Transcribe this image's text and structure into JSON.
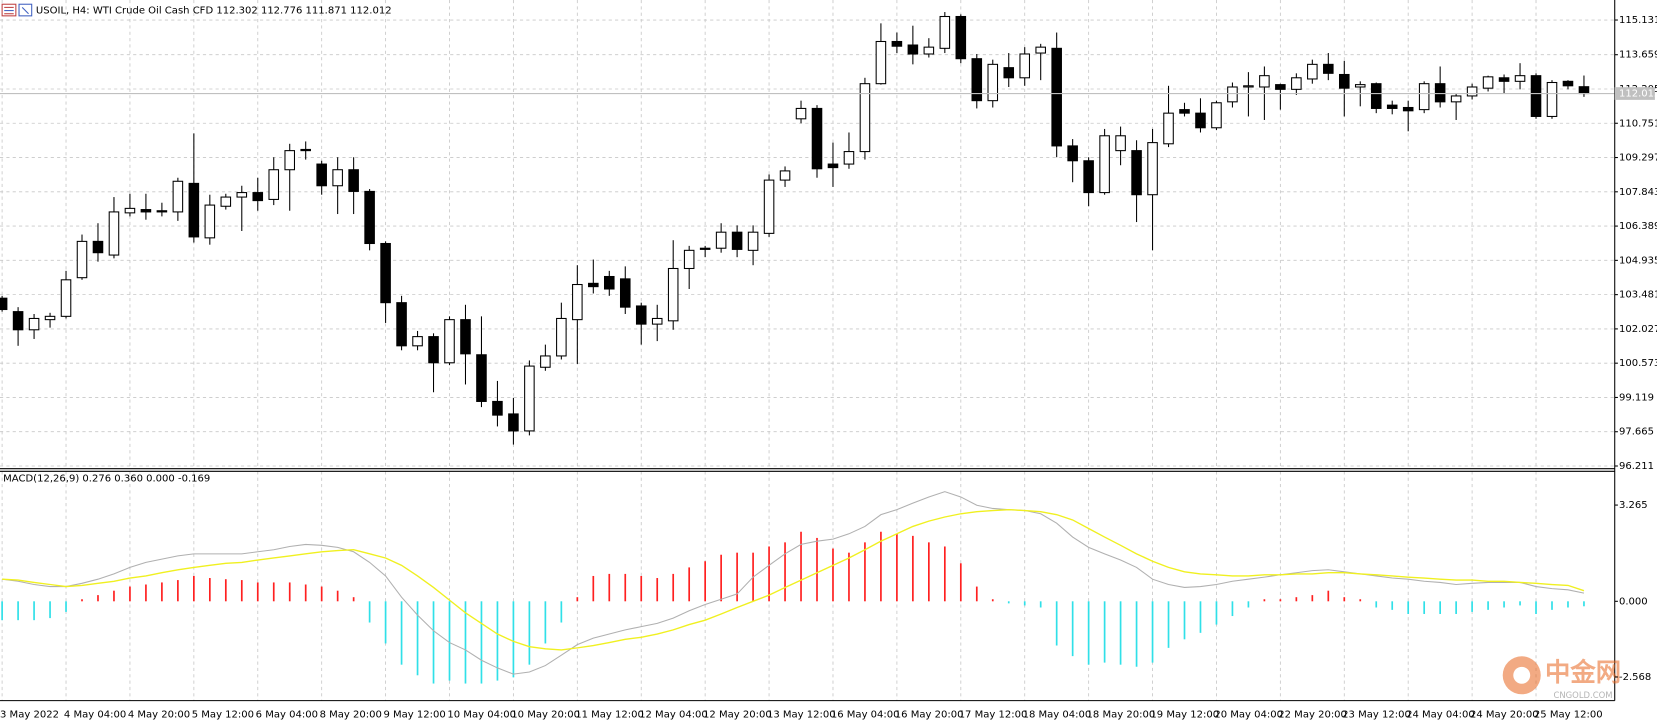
{
  "chart_data": [
    {
      "type": "candlestick",
      "title": "USOIL, H4: WTI Crude Oil Cash CFD  112.302 112.776 111.871 112.012",
      "categories": [
        "3 May 2022",
        null,
        null,
        null,
        "4 May 04:00",
        null,
        null,
        null,
        "4 May 20:00",
        null,
        null,
        null,
        "5 May 12:00",
        null,
        null,
        null,
        "6 May 04:00",
        null,
        null,
        null,
        "8 May 20:00",
        null,
        null,
        null,
        "9 May 12:00",
        null,
        null,
        null,
        "10 May 04:00",
        null,
        null,
        null,
        "10 May 20:00",
        null,
        null,
        null,
        "11 May 12:00",
        null,
        null,
        null,
        "12 May 04:00",
        null,
        null,
        null,
        "12 May 20:00",
        null,
        null,
        null,
        "13 May 12:00",
        null,
        null,
        null,
        "16 May 04:00",
        null,
        null,
        null,
        "16 May 20:00",
        null,
        null,
        null,
        "17 May 12:00",
        null,
        null,
        null,
        "18 May 04:00",
        null,
        null,
        null,
        "18 May 20:00",
        null,
        null,
        null,
        "19 May 12:00",
        null,
        null,
        null,
        "20 May 04:00",
        null,
        null,
        null,
        "22 May 20:00",
        null,
        null,
        null,
        "23 May 12:00",
        null,
        null,
        null,
        "24 May 04:00",
        null,
        null,
        null,
        "24 May 20:00",
        null,
        null,
        null,
        "25 May 12:00",
        null,
        null,
        null
      ],
      "open": [
        103.33,
        102.76,
        101.99,
        102.42,
        102.56,
        104.2,
        105.74,
        105.16,
        106.95,
        107.09,
        107.04,
        106.99,
        108.2,
        105.89,
        107.23,
        107.62,
        107.81,
        107.52,
        108.78,
        109.64,
        109.02,
        108.1,
        108.78,
        107.86,
        105.65,
        103.14,
        101.31,
        101.7,
        100.59,
        102.42,
        100.93,
        98.95,
        98.42,
        97.7,
        100.4,
        100.88,
        102.42,
        103.96,
        104.25,
        104.15,
        103.0,
        102.23,
        102.37,
        104.59,
        105.45,
        105.45,
        106.13,
        105.36,
        106.08,
        108.34,
        110.94,
        111.38,
        109.02,
        109.02,
        109.55,
        112.43,
        114.22,
        114.07,
        113.69,
        113.93,
        115.28,
        113.49,
        111.71,
        113.11,
        112.68,
        113.73,
        113.93,
        109.79,
        109.16,
        107.81,
        109.59,
        109.59,
        107.72,
        109.88,
        111.33,
        111.18,
        110.56,
        111.66,
        112.29,
        112.29,
        112.39,
        112.19,
        112.63,
        113.25,
        112.82,
        112.29,
        112.43,
        111.52,
        111.42,
        111.33,
        112.43,
        111.66,
        111.91,
        112.24,
        112.68,
        112.53,
        112.77,
        111.04,
        112.53,
        112.302
      ],
      "high": [
        103.43,
        102.95,
        102.66,
        102.71,
        104.49,
        106.03,
        106.51,
        107.62,
        107.76,
        107.76,
        107.38,
        108.44,
        110.32,
        107.72,
        107.76,
        108.1,
        108.44,
        109.31,
        109.88,
        109.98,
        109.16,
        109.31,
        109.31,
        107.96,
        105.74,
        103.43,
        101.94,
        101.84,
        102.56,
        103.05,
        102.56,
        99.82,
        99.1,
        100.69,
        101.36,
        103.14,
        104.73,
        104.97,
        104.49,
        104.68,
        103.14,
        103.05,
        105.79,
        105.55,
        105.55,
        106.51,
        106.42,
        106.42,
        108.58,
        108.92,
        111.71,
        111.52,
        109.93,
        110.36,
        112.68,
        114.99,
        114.6,
        114.89,
        114.36,
        115.47,
        115.37,
        113.69,
        113.45,
        113.73,
        113.98,
        114.12,
        114.6,
        110.08,
        109.31,
        110.51,
        110.61,
        110.03,
        110.51,
        112.34,
        111.62,
        111.81,
        111.71,
        112.48,
        112.92,
        113.16,
        112.43,
        112.87,
        113.45,
        113.73,
        113.4,
        112.53,
        112.48,
        111.71,
        111.71,
        112.53,
        113.16,
        112.0,
        112.43,
        112.77,
        112.82,
        113.3,
        112.87,
        112.58,
        112.58,
        112.776
      ],
      "low": [
        102.76,
        101.31,
        101.6,
        102.08,
        102.47,
        104.11,
        104.88,
        105.02,
        106.8,
        106.66,
        106.8,
        106.61,
        105.69,
        105.6,
        107.09,
        106.18,
        107.04,
        107.28,
        107.04,
        109.21,
        107.72,
        106.9,
        106.9,
        105.36,
        102.28,
        101.12,
        101.12,
        99.34,
        100.49,
        99.67,
        98.71,
        97.89,
        97.12,
        97.51,
        100.25,
        100.73,
        100.54,
        103.53,
        103.43,
        102.66,
        101.36,
        101.51,
        101.99,
        103.72,
        105.07,
        105.26,
        105.07,
        104.73,
        105.93,
        108.05,
        110.75,
        108.44,
        108.05,
        108.82,
        109.21,
        112.39,
        113.73,
        113.25,
        113.54,
        113.73,
        113.3,
        111.38,
        111.42,
        112.29,
        112.34,
        112.58,
        109.31,
        108.25,
        107.23,
        107.72,
        108.97,
        106.56,
        105.36,
        109.74,
        111.04,
        110.36,
        110.46,
        111.42,
        111.04,
        110.89,
        111.33,
        111.95,
        112.43,
        112.58,
        111.04,
        111.47,
        111.18,
        111.13,
        110.41,
        111.18,
        111.42,
        110.89,
        111.76,
        112.1,
        112.0,
        112.19,
        110.94,
        110.94,
        112.19,
        111.871
      ],
      "close": [
        102.85,
        101.99,
        102.47,
        102.56,
        104.11,
        105.74,
        105.26,
        106.99,
        107.14,
        106.99,
        106.99,
        108.29,
        105.93,
        107.28,
        107.62,
        107.81,
        107.47,
        108.78,
        109.59,
        109.59,
        108.1,
        108.78,
        107.86,
        105.65,
        103.14,
        101.31,
        101.7,
        100.59,
        102.42,
        100.97,
        98.95,
        98.37,
        97.7,
        100.45,
        100.88,
        102.47,
        103.91,
        103.82,
        103.72,
        102.95,
        102.23,
        102.47,
        104.59,
        105.36,
        105.4,
        106.13,
        105.4,
        106.13,
        108.34,
        108.73,
        111.38,
        108.82,
        108.87,
        109.55,
        112.43,
        114.22,
        114.02,
        113.69,
        113.98,
        115.28,
        113.49,
        111.71,
        113.25,
        112.68,
        113.69,
        113.98,
        109.79,
        109.16,
        107.81,
        110.22,
        110.22,
        107.72,
        109.93,
        111.18,
        111.18,
        110.56,
        111.62,
        112.29,
        112.34,
        112.77,
        112.19,
        112.68,
        113.25,
        112.87,
        112.24,
        112.39,
        111.38,
        111.38,
        111.28,
        112.43,
        111.66,
        111.91,
        112.29,
        112.72,
        112.53,
        112.77,
        111.04,
        112.48,
        112.34,
        112.012
      ],
      "up_color": "#ffffff",
      "down_color": "#000000",
      "outline_color": "#000000",
      "current_price_color": "#c0c0c0",
      "ylim": [
        96.12,
        115.98
      ],
      "yticks": [
        115.131,
        113.659,
        112.205,
        110.751,
        109.297,
        107.843,
        106.389,
        104.935,
        103.481,
        102.027,
        100.573,
        99.119,
        97.665,
        96.211
      ],
      "grid": true
    },
    {
      "type": "macd",
      "title": "MACD(12,26,9) 0.276 0.360 0.000 -0.169",
      "histogram": [
        -0.64,
        -0.64,
        -0.64,
        -0.57,
        -0.36,
        0.07,
        0.21,
        0.36,
        0.5,
        0.57,
        0.64,
        0.72,
        0.86,
        0.79,
        0.75,
        0.72,
        0.64,
        0.64,
        0.64,
        0.57,
        0.5,
        0.36,
        0.14,
        -0.72,
        -1.43,
        -2.15,
        -2.51,
        -2.79,
        -2.69,
        -2.79,
        -2.79,
        -2.69,
        -2.58,
        -2.15,
        -1.43,
        -0.72,
        0.14,
        0.86,
        0.93,
        0.93,
        0.86,
        0.79,
        0.93,
        1.15,
        1.36,
        1.58,
        1.65,
        1.65,
        1.86,
        2.0,
        2.36,
        2.15,
        1.79,
        1.65,
        2.0,
        2.36,
        2.29,
        2.22,
        2.0,
        1.86,
        1.29,
        0.5,
        0.07,
        -0.07,
        -0.14,
        -0.21,
        -1.5,
        -1.86,
        -2.15,
        -2.08,
        -2.15,
        -2.22,
        -2.08,
        -1.58,
        -1.29,
        -1.07,
        -0.79,
        -0.5,
        -0.21,
        0.07,
        0.07,
        0.14,
        0.21,
        0.36,
        0.14,
        0.07,
        -0.21,
        -0.29,
        -0.43,
        -0.43,
        -0.43,
        -0.43,
        -0.36,
        -0.29,
        -0.21,
        -0.14,
        -0.43,
        -0.29,
        -0.21,
        -0.169
      ],
      "macd": [
        0.75,
        0.68,
        0.57,
        0.5,
        0.5,
        0.61,
        0.75,
        0.93,
        1.15,
        1.32,
        1.43,
        1.54,
        1.61,
        1.61,
        1.61,
        1.61,
        1.68,
        1.75,
        1.86,
        1.93,
        1.9,
        1.83,
        1.68,
        1.32,
        0.86,
        0.14,
        -0.47,
        -1.0,
        -1.4,
        -1.65,
        -2.0,
        -2.26,
        -2.47,
        -2.4,
        -2.18,
        -1.83,
        -1.47,
        -1.25,
        -1.11,
        -0.97,
        -0.86,
        -0.75,
        -0.57,
        -0.32,
        -0.11,
        0.07,
        0.25,
        0.82,
        1.22,
        1.61,
        1.93,
        2.04,
        2.11,
        2.29,
        2.54,
        2.94,
        3.11,
        3.33,
        3.54,
        3.72,
        3.54,
        3.26,
        3.15,
        3.11,
        3.08,
        2.97,
        2.65,
        2.18,
        1.83,
        1.61,
        1.4,
        1.15,
        0.75,
        0.57,
        0.47,
        0.5,
        0.57,
        0.68,
        0.75,
        0.82,
        0.9,
        0.97,
        1.04,
        1.07,
        1.0,
        0.93,
        0.86,
        0.79,
        0.75,
        0.68,
        0.64,
        0.57,
        0.61,
        0.64,
        0.64,
        0.64,
        0.5,
        0.43,
        0.39,
        0.276
      ],
      "signal": [
        0.75,
        0.72,
        0.64,
        0.57,
        0.5,
        0.54,
        0.61,
        0.68,
        0.79,
        0.86,
        0.97,
        1.07,
        1.15,
        1.22,
        1.29,
        1.32,
        1.4,
        1.47,
        1.54,
        1.61,
        1.68,
        1.72,
        1.75,
        1.61,
        1.47,
        1.22,
        0.86,
        0.47,
        0.04,
        -0.39,
        -0.75,
        -1.11,
        -1.36,
        -1.54,
        -1.61,
        -1.65,
        -1.58,
        -1.5,
        -1.4,
        -1.29,
        -1.22,
        -1.11,
        -0.97,
        -0.79,
        -0.64,
        -0.43,
        -0.21,
        0.0,
        0.21,
        0.47,
        0.72,
        0.97,
        1.22,
        1.47,
        1.75,
        2.04,
        2.29,
        2.54,
        2.72,
        2.86,
        2.97,
        3.04,
        3.08,
        3.11,
        3.08,
        3.04,
        2.94,
        2.76,
        2.47,
        2.18,
        1.9,
        1.61,
        1.36,
        1.15,
        1.0,
        0.93,
        0.9,
        0.86,
        0.86,
        0.9,
        0.9,
        0.93,
        0.93,
        0.97,
        0.97,
        0.93,
        0.9,
        0.86,
        0.82,
        0.79,
        0.75,
        0.72,
        0.72,
        0.68,
        0.68,
        0.64,
        0.61,
        0.57,
        0.54,
        0.36
      ],
      "positive_color": "#ff2020",
      "negative_color": "#30e0e8",
      "macd_color": "#b0b0b0",
      "signal_color": "#f0f020",
      "ylim": [
        -3.37,
        4.41
      ],
      "yticks": [
        3.265,
        {
          "value": 0,
          "label": "0.000"
        },
        -2.568
      ],
      "grid": true
    },
    {
      "watermark": [
        "中金网",
        "CNGOLD.COM"
      ]
    }
  ]
}
